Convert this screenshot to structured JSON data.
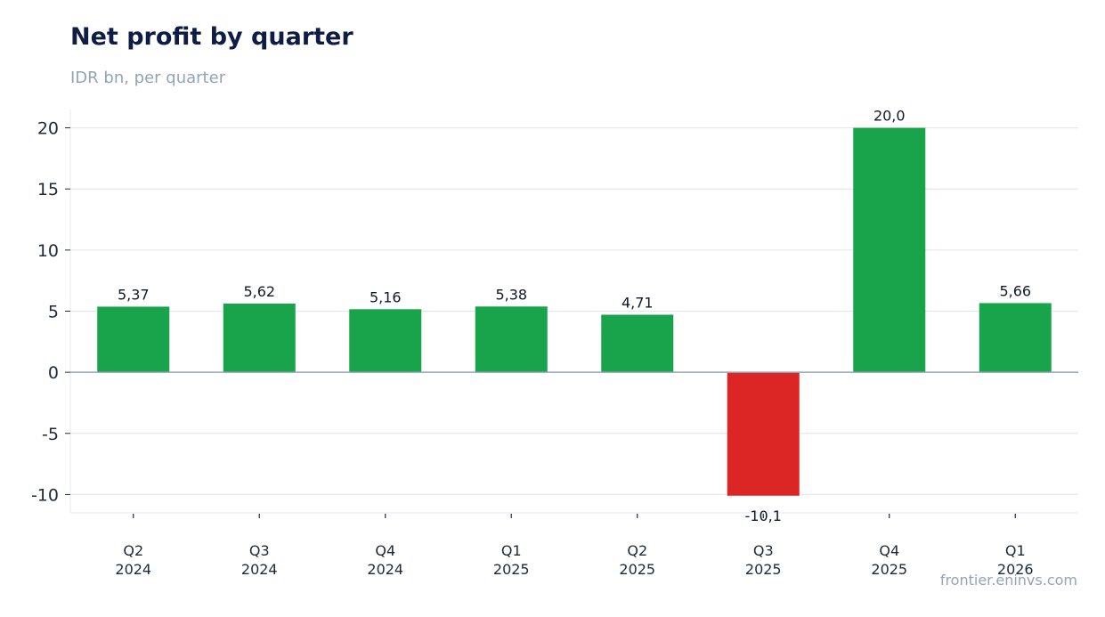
{
  "title": "Net profit by quarter",
  "subtitle": "IDR bn, per quarter",
  "source": "frontier.eninvs.com",
  "colors": {
    "positive": "#19a34a",
    "negative": "#dc2626",
    "grid": "#e5e9ef",
    "zero": "#94a3b8"
  },
  "chart_data": {
    "type": "bar",
    "categories": [
      [
        "Q2",
        "2024"
      ],
      [
        "Q3",
        "2024"
      ],
      [
        "Q4",
        "2024"
      ],
      [
        "Q1",
        "2025"
      ],
      [
        "Q2",
        "2025"
      ],
      [
        "Q3",
        "2025"
      ],
      [
        "Q4",
        "2025"
      ],
      [
        "Q1",
        "2026"
      ]
    ],
    "values": [
      5.37,
      5.62,
      5.16,
      5.38,
      4.71,
      -10.1,
      20.0,
      5.66
    ],
    "data_labels": [
      "5,37",
      "5,62",
      "5,16",
      "5,38",
      "4,71",
      "-10,1",
      "20,0",
      "5,66"
    ],
    "yticks": [
      -10,
      -5,
      0,
      5,
      10,
      15,
      20
    ],
    "ytick_labels": [
      "-10",
      "-5",
      "0",
      "5",
      "10",
      "15",
      "20"
    ],
    "ylim": [
      -11.5,
      21.5
    ],
    "grid": true
  }
}
